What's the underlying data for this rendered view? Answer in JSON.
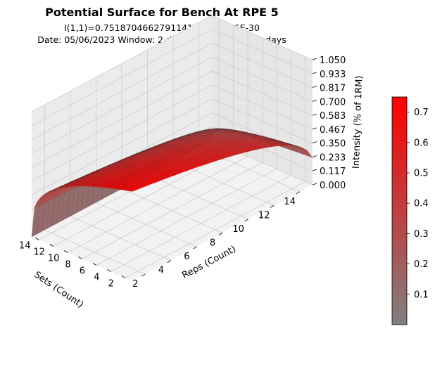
{
  "chart_data": {
    "type": "surface3d",
    "title": "Potential Surface for Bench At RPE 5",
    "subtitle_line1": "I(1,1)=0.7518704662791141 MSE: 1.36E-30",
    "subtitle_line2": "Date: 05/06/2023  Window: 2 days  Time frame: 148 days",
    "xlabel": "Reps (Count)",
    "ylabel": "Sets (Count)",
    "zlabel": "Intensity (% of 1RM)",
    "x_ticks": [
      "2",
      "4",
      "6",
      "8",
      "10",
      "12",
      "14"
    ],
    "y_ticks": [
      "2",
      "4",
      "6",
      "8",
      "10",
      "12",
      "14"
    ],
    "z_ticks": [
      "0.000",
      "0.117",
      "0.233",
      "0.350",
      "0.467",
      "0.583",
      "0.700",
      "0.817",
      "0.933",
      "1.050"
    ],
    "x_range": [
      1,
      15
    ],
    "y_range": [
      1,
      15
    ],
    "z_range": [
      0,
      1.05
    ],
    "peak_value": 0.7518704662791141,
    "colormap": [
      "#808080",
      "#ff0000"
    ],
    "colorbar_ticks": [
      "0.1",
      "0.2",
      "0.3",
      "0.4",
      "0.5",
      "0.6",
      "0.7"
    ],
    "colorbar_range": [
      0,
      0.75
    ],
    "grid": true
  }
}
